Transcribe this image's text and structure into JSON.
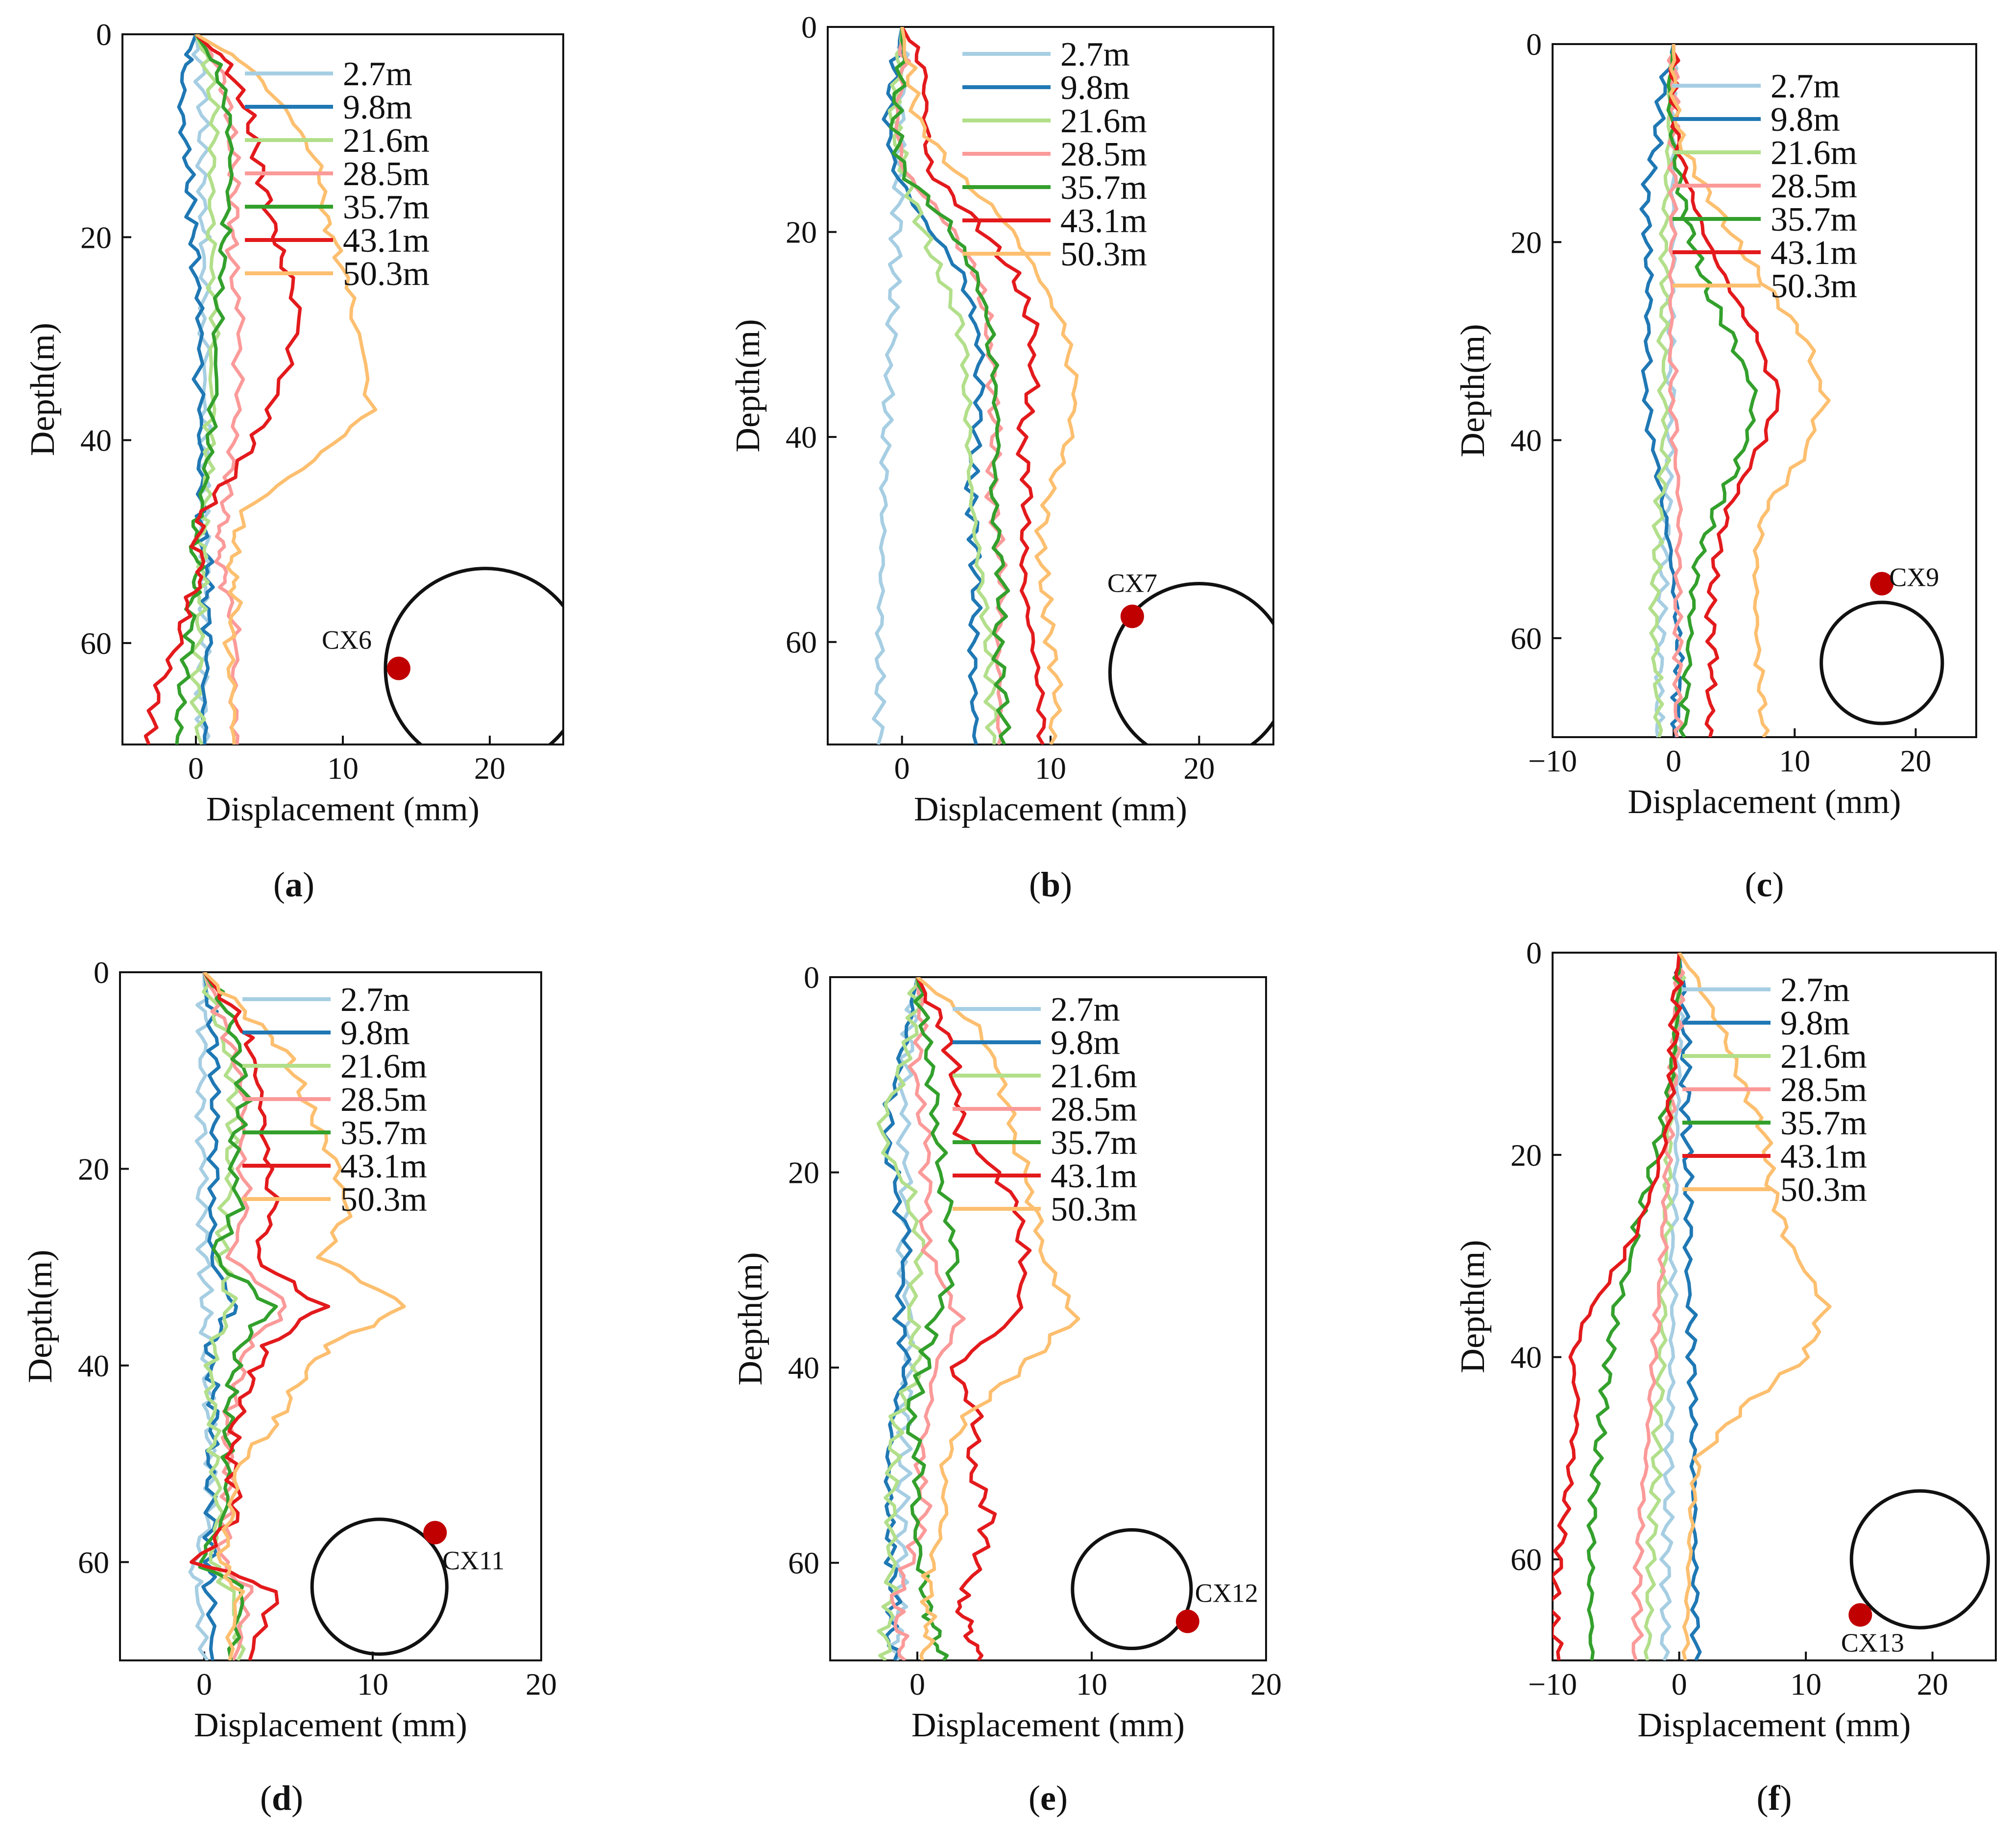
{
  "series_colors": {
    "2.7m": "#a6cee3",
    "9.8m": "#1f78b4",
    "21.6m": "#b2df8a",
    "28.5m": "#fb9a99",
    "35.7m": "#33a02c",
    "43.1m": "#e31a1c",
    "50.3m": "#fdbf6f"
  },
  "marker_color": "#c00000",
  "chart_data": [
    {
      "type": "line",
      "panel": "(a)",
      "caption_letter": "a",
      "xlabel": "Displacement (mm)",
      "ylabel": "Depth(m)",
      "xlim": [
        -5,
        25
      ],
      "ylim": [
        70,
        0
      ],
      "xticks": [
        0,
        10,
        20
      ],
      "yticks": [
        0,
        20,
        40,
        60
      ],
      "monitor_label": "CX6",
      "monitor_point": [
        13.8,
        62.5
      ],
      "tunnel_circle": {
        "cx": 19.7,
        "cy": 62.5,
        "r": 6.8
      },
      "series": [
        {
          "name": "2.7m",
          "values": [
            0,
            0.3,
            0.5,
            0.4,
            0.5,
            0.6,
            0.5,
            0.7,
            0.6,
            0.5,
            0.6,
            0.7,
            0.5,
            0.6,
            0.4,
            0.5
          ]
        },
        {
          "name": "9.8m",
          "values": [
            0,
            -0.8,
            -1.0,
            -0.5,
            -0.3,
            0,
            0.2,
            0.3,
            0.3,
            0.4,
            0.5,
            0.9,
            0.7,
            0.9,
            0.5,
            0.6
          ]
        },
        {
          "name": "21.6m",
          "values": [
            0,
            0.8,
            1.3,
            1.1,
            1.0,
            1.1,
            1.2,
            1.0,
            0.9,
            0.6,
            0.4,
            0.5,
            0.3,
            0.2,
            0,
            0.4
          ]
        },
        {
          "name": "28.5m",
          "values": [
            0,
            1.6,
            2.3,
            2.6,
            2.6,
            2.4,
            3.0,
            2.8,
            2.4,
            2.0,
            1.6,
            1.8,
            2.3,
            2.8,
            2.5,
            2.8
          ]
        },
        {
          "name": "35.7m",
          "values": [
            0,
            1.4,
            2.2,
            2.4,
            2.1,
            1.8,
            1.5,
            1.2,
            0.8,
            0.3,
            -0.2,
            0.2,
            -0.3,
            -0.4,
            -1.0,
            -1.3
          ]
        },
        {
          "name": "43.1m",
          "values": [
            0,
            2.2,
            3.6,
            4.3,
            5.1,
            5.8,
            7.2,
            5.1,
            3.2,
            0.5,
            0,
            0.5,
            -0.5,
            -1.2,
            -2.7,
            -3.2
          ]
        },
        {
          "name": "50.3m",
          "values": [
            0,
            3.5,
            6.4,
            8.4,
            8.8,
            9.8,
            10.9,
            12.0,
            8.0,
            3.2,
            2.7,
            2.4,
            2.8,
            2.2,
            2.5,
            2.6
          ]
        }
      ],
      "depth": [
        0,
        3,
        8,
        13,
        18,
        22,
        28,
        37,
        42,
        47,
        50,
        53,
        56,
        60,
        65,
        70
      ]
    },
    {
      "type": "line",
      "panel": "(b)",
      "caption_letter": "b",
      "xlabel": "Displacement (mm)",
      "ylabel": "Depth(m)",
      "xlim": [
        -5,
        25
      ],
      "ylim": [
        70,
        0
      ],
      "xticks": [
        0,
        10,
        20
      ],
      "yticks": [
        0,
        20,
        40,
        60
      ],
      "monitor_label": "CX7",
      "monitor_point": [
        15.5,
        57.5
      ],
      "tunnel_circle": {
        "cx": 20.0,
        "cy": 63.0,
        "r": 6.0
      },
      "series": [
        {
          "name": "2.7m",
          "values": [
            0,
            0.1,
            -0.1,
            -0.2,
            -0.3,
            -0.5,
            -0.7,
            -0.9,
            -1.1,
            -1.2,
            -1.3,
            -1.4,
            -1.5,
            -1.5,
            -1.6
          ]
        },
        {
          "name": "9.8m",
          "values": [
            0,
            -0.5,
            -1.0,
            -0.5,
            1.5,
            4.0,
            5.0,
            5.3,
            5.0,
            4.6,
            4.9,
            5.0,
            4.8,
            4.8,
            5.0
          ]
        },
        {
          "name": "21.6m",
          "values": [
            0,
            -0.2,
            -0.6,
            0.2,
            1.2,
            2.5,
            4.0,
            4.3,
            4.5,
            4.6,
            5.0,
            5.4,
            5.8,
            6.0,
            6.2
          ]
        },
        {
          "name": "28.5m",
          "values": [
            0,
            0.1,
            -0.4,
            0.1,
            3.0,
            5.0,
            5.8,
            6.1,
            6.3,
            6.0,
            6.5,
            6.8,
            6.4,
            6.6,
            6.5
          ]
        },
        {
          "name": "35.7m",
          "values": [
            0,
            0,
            -0.5,
            0.0,
            3.0,
            4.9,
            5.9,
            6.2,
            6.5,
            6.1,
            6.4,
            6.8,
            6.4,
            6.8,
            6.9
          ]
        },
        {
          "name": "43.1m",
          "values": [
            0,
            1.5,
            1.6,
            1.8,
            5.0,
            7.5,
            8.8,
            8.8,
            8.0,
            8.5,
            8.2,
            8.2,
            8.8,
            9.3,
            9.5
          ]
        },
        {
          "name": "50.3m",
          "values": [
            0,
            0.5,
            1.0,
            3.5,
            7.0,
            9.1,
            10.8,
            11.7,
            11.3,
            10.0,
            9.3,
            9.6,
            10.0,
            10.5,
            10.0
          ]
        }
      ],
      "depth": [
        0,
        4,
        9,
        14,
        19,
        24,
        29,
        35,
        40,
        45,
        50,
        55,
        60,
        65,
        70
      ]
    },
    {
      "type": "line",
      "panel": "(c)",
      "caption_letter": "c",
      "xlabel": "Displacement (mm)",
      "ylabel": "Depth(m)",
      "xlim": [
        -10,
        25
      ],
      "ylim": [
        70,
        0
      ],
      "xticks": [
        -10,
        0,
        10,
        20
      ],
      "yticks": [
        0,
        20,
        40,
        60
      ],
      "monitor_label": "CX9",
      "monitor_point": [
        17.2,
        54.5
      ],
      "tunnel_circle": {
        "cx": 17.2,
        "cy": 62.5,
        "r": 5.0
      },
      "series": [
        {
          "name": "2.7m",
          "values": [
            0,
            -0.1,
            0,
            -0.1,
            0,
            -0.2,
            -0.3,
            -0.2,
            -0.4,
            -0.5,
            -0.8,
            -1.0,
            -1.1,
            -1.2,
            -1.3
          ]
        },
        {
          "name": "9.8m",
          "values": [
            0,
            -1.0,
            -1.4,
            -2.3,
            -2.2,
            -2.0,
            -2.2,
            -2.3,
            -1.5,
            -0.8,
            -0.2,
            0.2,
            0.5,
            0.3,
            0.2
          ]
        },
        {
          "name": "21.6m",
          "values": [
            0,
            -0.3,
            -0.4,
            -0.6,
            -0.8,
            -0.7,
            -0.9,
            -0.8,
            -0.7,
            -1.2,
            -1.4,
            -1.6,
            -1.5,
            -1.3,
            -1.2
          ]
        },
        {
          "name": "28.5m",
          "values": [
            0,
            0,
            0,
            0,
            -0.1,
            -0.2,
            -0.2,
            -0.1,
            0.2,
            0.5,
            0.4,
            0.3,
            0.4,
            0.3,
            0.3
          ]
        },
        {
          "name": "35.7m",
          "values": [
            0,
            -0.4,
            0,
            0.6,
            1.6,
            2.8,
            5.0,
            6.8,
            5.5,
            3.5,
            2.0,
            1.5,
            1.2,
            1.0,
            0.9
          ]
        },
        {
          "name": "43.1m",
          "values": [
            0,
            0,
            0.3,
            1.4,
            2.8,
            4.8,
            7.0,
            8.8,
            6.5,
            4.5,
            3.5,
            3.0,
            3.3,
            3.0,
            3.0
          ]
        },
        {
          "name": "50.3m",
          "values": [
            0,
            0,
            0.6,
            2.8,
            5.2,
            8.0,
            11.0,
            12.5,
            10.5,
            7.5,
            6.8,
            6.8,
            7.0,
            7.3,
            7.4
          ]
        }
      ],
      "depth": [
        0,
        5,
        10,
        15,
        20,
        25,
        30,
        36,
        42,
        47,
        52,
        57,
        62,
        66,
        70
      ]
    },
    {
      "type": "line",
      "panel": "(d)",
      "caption_letter": "d",
      "xlabel": "Displacement (mm)",
      "ylabel": "Depth(m)",
      "xlim": [
        -5,
        20
      ],
      "ylim": [
        70,
        0
      ],
      "xticks": [
        0,
        10,
        20
      ],
      "yticks": [
        0,
        20,
        40,
        60
      ],
      "monitor_label": "CX11",
      "monitor_point": [
        13.7,
        57.0
      ],
      "tunnel_circle": {
        "cx": 10.4,
        "cy": 62.5,
        "r": 4.0
      },
      "series": [
        {
          "name": "2.7m",
          "values": [
            0,
            0,
            -0.1,
            -0.2,
            -0.1,
            -0.1,
            0,
            0.1,
            0.1,
            0.2,
            0.3,
            0.4,
            0.4,
            -0.6,
            -0.5,
            0.2
          ]
        },
        {
          "name": "9.8m",
          "values": [
            0,
            0.4,
            0.6,
            0.6,
            0.6,
            0.5,
            0.4,
            1.8,
            0.3,
            0.5,
            0.6,
            0.3,
            0.4,
            0.4,
            0.2,
            0.5
          ]
        },
        {
          "name": "21.6m",
          "values": [
            0,
            0.6,
            1.4,
            1.8,
            1.6,
            1.3,
            1.0,
            1.6,
            0.6,
            0.3,
            0.6,
            0.6,
            0.9,
            0.4,
            1.6,
            2.0
          ]
        },
        {
          "name": "28.5m",
          "values": [
            0,
            0.9,
            1.7,
            2.4,
            2.2,
            2.5,
            1.5,
            5.0,
            2.5,
            2.0,
            1.3,
            1.5,
            1.4,
            1.0,
            2.7,
            1.7
          ]
        },
        {
          "name": "35.7m",
          "values": [
            0,
            1.4,
            2.0,
            2.4,
            1.7,
            2.0,
            0.5,
            4.1,
            2.1,
            1.6,
            1.4,
            1.4,
            1.3,
            -0.3,
            2.5,
            1.6
          ]
        },
        {
          "name": "43.1m",
          "values": [
            0,
            1.8,
            2.8,
            3.4,
            3.6,
            4.2,
            3.0,
            7.0,
            3.8,
            2.7,
            1.8,
            1.6,
            2.0,
            -0.5,
            4.5,
            2.7
          ]
        },
        {
          "name": "50.3m",
          "values": [
            0,
            2.4,
            4.8,
            6.0,
            7.4,
            8.6,
            7.0,
            12.0,
            7.3,
            5.5,
            4.3,
            2.0,
            1.6,
            1.0,
            2.0,
            1.5
          ]
        }
      ],
      "depth": [
        0,
        4,
        8,
        13,
        18,
        24,
        29,
        34,
        38,
        42,
        46,
        50,
        55,
        60,
        63,
        70
      ]
    },
    {
      "type": "line",
      "panel": "(e)",
      "caption_letter": "e",
      "xlabel": "Displacement (mm)",
      "ylabel": "Depth(m)",
      "xlim": [
        -5,
        20
      ],
      "ylim": [
        70,
        0
      ],
      "xticks": [
        0,
        10,
        20
      ],
      "yticks": [
        0,
        20,
        40,
        60
      ],
      "monitor_label": "CX12",
      "monitor_point": [
        15.5,
        66.0
      ],
      "tunnel_circle": {
        "cx": 12.3,
        "cy": 62.7,
        "r": 3.4
      },
      "series": [
        {
          "name": "2.7m",
          "values": [
            0,
            -0.4,
            -0.7,
            -0.8,
            -0.6,
            -0.8,
            -0.5,
            -0.5,
            -0.7,
            -0.8,
            -0.9,
            -0.9,
            -1.0,
            -1.2,
            -1.2
          ]
        },
        {
          "name": "9.8m",
          "values": [
            0,
            -0.5,
            -1.2,
            -1.8,
            -1.2,
            -0.5,
            -1.0,
            -0.6,
            -1.4,
            -1.7,
            -1.6,
            -1.5,
            -1.3,
            -1.6,
            -1.3
          ]
        },
        {
          "name": "21.6m",
          "values": [
            0,
            -0.2,
            -1.0,
            -2.2,
            -0.5,
            0.2,
            -0.3,
            0.1,
            -1.2,
            -1.4,
            -1.5,
            -1.5,
            -1.5,
            -1.8,
            -1.8
          ]
        },
        {
          "name": "28.5m",
          "values": [
            0,
            0.3,
            -0.2,
            0.5,
            0.6,
            0.4,
            2.5,
            1.0,
            0.6,
            0.1,
            0.5,
            -0.5,
            -1.3,
            -1.0,
            -0.7
          ]
        },
        {
          "name": "35.7m",
          "values": [
            0,
            0.4,
            0.8,
            1.1,
            1.5,
            2.2,
            1.0,
            0.4,
            -0.5,
            0.2,
            -0.2,
            0.2,
            0.5,
            1.0,
            1.5
          ]
        },
        {
          "name": "43.1m",
          "values": [
            0,
            1.5,
            2.2,
            2.5,
            5.4,
            6.2,
            5.5,
            2.0,
            3.5,
            3.0,
            4.2,
            3.5,
            2.4,
            3.0,
            3.5
          ]
        },
        {
          "name": "50.3m",
          "values": [
            0,
            3.4,
            4.8,
            5.5,
            6.5,
            7.2,
            9.0,
            6.0,
            2.8,
            1.5,
            1.6,
            0.8,
            0.6,
            0.7,
            0.3
          ]
        }
      ],
      "depth": [
        0,
        5,
        10,
        16,
        22,
        28,
        35,
        40,
        45,
        50,
        55,
        60,
        64,
        67,
        70
      ]
    },
    {
      "type": "line",
      "panel": "(f)",
      "caption_letter": "f",
      "xlabel": "Displacement (mm)",
      "ylabel": "Depth(m)",
      "xlim": [
        -10,
        25
      ],
      "ylim": [
        70,
        0
      ],
      "xticks": [
        -10,
        0,
        10,
        20
      ],
      "yticks": [
        0,
        20,
        40,
        60
      ],
      "monitor_label": "CX13",
      "monitor_point": [
        14.3,
        65.5
      ],
      "tunnel_circle": {
        "cx": 19.0,
        "cy": 60.0,
        "r": 5.4
      },
      "series": [
        {
          "name": "2.7m",
          "values": [
            0,
            0.1,
            0,
            -0.1,
            -0.2,
            -0.3,
            -0.4,
            -0.5,
            -0.6,
            -0.7,
            -0.8,
            -0.9,
            -1.0,
            -1.1,
            -1.2
          ]
        },
        {
          "name": "9.8m",
          "values": [
            0,
            0.2,
            0.5,
            0.5,
            0.6,
            0.7,
            0.8,
            0.9,
            1.0,
            1.1,
            1.1,
            1.2,
            1.2,
            1.3,
            1.3
          ]
        },
        {
          "name": "21.6m",
          "values": [
            0,
            0,
            -0.3,
            -0.5,
            -0.8,
            -0.9,
            -1.0,
            -1.2,
            -1.4,
            -1.6,
            -1.8,
            -2.0,
            -2.2,
            -2.4,
            -2.5
          ]
        },
        {
          "name": "28.5m",
          "values": [
            0,
            0,
            -0.2,
            -0.5,
            -0.8,
            -1.0,
            -1.3,
            -1.6,
            -2.0,
            -2.3,
            -2.6,
            -3.0,
            -3.2,
            -3.3,
            -3.4
          ]
        },
        {
          "name": "35.7m",
          "values": [
            0,
            0,
            -0.3,
            -0.7,
            -1.5,
            -2.5,
            -3.5,
            -5.0,
            -5.5,
            -6.0,
            -6.5,
            -6.8,
            -7.0,
            -7.0,
            -6.9
          ]
        },
        {
          "name": "43.1m",
          "values": [
            0,
            -0.2,
            -0.4,
            -0.6,
            -1.0,
            -2.0,
            -3.5,
            -7.0,
            -8.5,
            -8.0,
            -8.5,
            -9.0,
            -9.5,
            -10.0,
            -9.5
          ]
        },
        {
          "name": "50.3m",
          "values": [
            0,
            1.5,
            3.5,
            5.0,
            6.8,
            7.2,
            8.5,
            11.5,
            10.0,
            5.0,
            1.5,
            1.0,
            0.8,
            0.6,
            0.5
          ]
        }
      ],
      "depth": [
        0,
        3,
        8,
        13,
        18,
        23,
        28,
        35,
        40,
        45,
        50,
        55,
        60,
        65,
        70
      ]
    }
  ]
}
